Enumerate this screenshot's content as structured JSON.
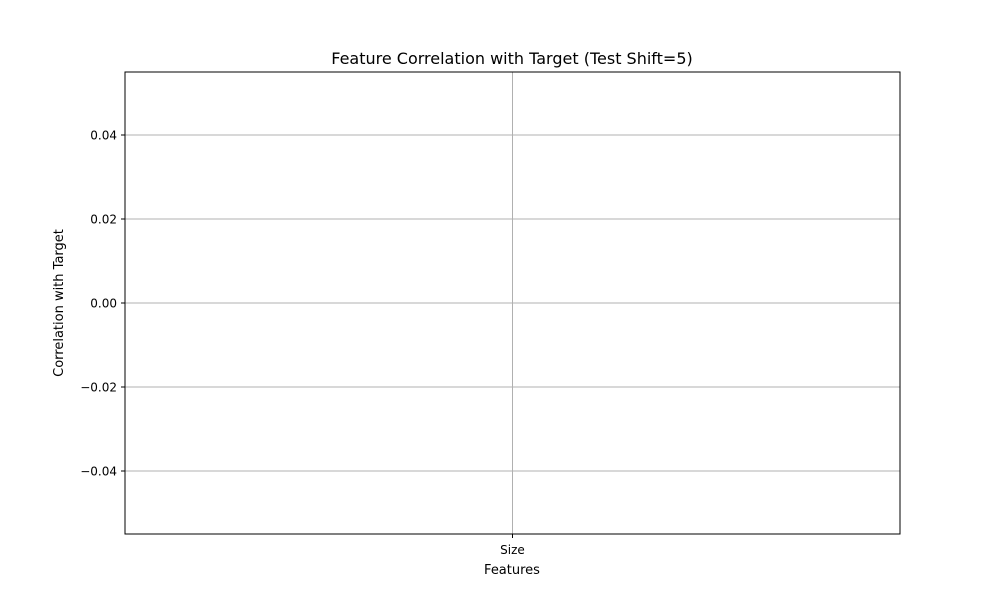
{
  "chart_data": {
    "type": "bar",
    "title": "Feature Correlation with Target (Test Shift=5)",
    "xlabel": "Features",
    "ylabel": "Correlation with Target",
    "categories": [
      "Size"
    ],
    "values": [
      0
    ],
    "ylim": [
      -0.055,
      0.055
    ],
    "yticks": [
      0.04,
      0.02,
      0.0,
      -0.02,
      -0.04
    ],
    "ytick_labels": [
      "0.04",
      "0.02",
      "0.00",
      "−0.02",
      "−0.04"
    ],
    "grid": true,
    "legend": "none",
    "colors": {
      "grid": "#b0b0b0",
      "axes": "#000000",
      "text": "#000000",
      "bar": "#1f77b4"
    }
  }
}
